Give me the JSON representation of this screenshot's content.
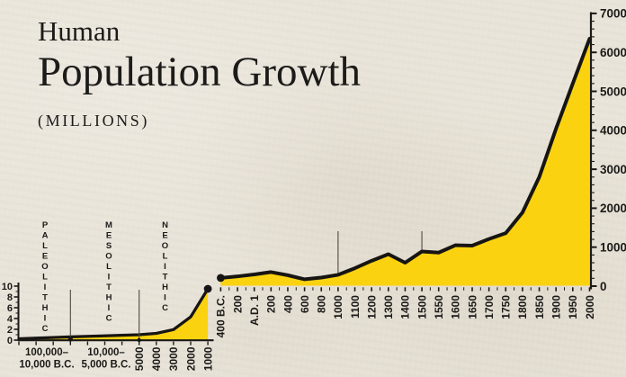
{
  "title": {
    "line1": "Human",
    "line2": "Population Growth",
    "unit_label": "(MILLIONS)"
  },
  "colors": {
    "background": "#e9e4d9",
    "area_fill": "#fbd20f",
    "curve_line": "#171513",
    "text": "#1b1a18",
    "annotation_line": "#4e483f"
  },
  "epochs": [
    {
      "label": "PALEOLITHIC"
    },
    {
      "label": "MESOLITHIC"
    },
    {
      "label": "NEOLITHIC"
    }
  ],
  "chart_data": [
    {
      "type": "area",
      "name": "prehistoric-population",
      "ylim": [
        0,
        10
      ],
      "yticks": [
        0,
        2,
        4,
        6,
        8,
        10
      ],
      "grid": false,
      "categories": [
        "100,000 B.C.",
        "10,000 B.C.",
        "5000 B.C.",
        "4000 B.C.",
        "3000 B.C.",
        "2000 B.C.",
        "1000 B.C."
      ],
      "values": [
        0.25,
        0.6,
        1.0,
        1.25,
        1.95,
        4.3,
        9.5
      ],
      "range_labels": [
        {
          "line1": "100,000–",
          "line2": "10,000 B.C."
        },
        {
          "line1": "10,000–",
          "line2": "5,000 B.C."
        }
      ],
      "rotated_tick_labels": [
        "5000",
        "4000",
        "3000",
        "2000",
        "1000"
      ],
      "end_dot": true
    },
    {
      "type": "area",
      "name": "historic-population",
      "ylim": [
        0,
        7000
      ],
      "yticks": [
        0,
        1000,
        2000,
        3000,
        4000,
        5000,
        6000,
        7000
      ],
      "y_minor_tick_step": 200,
      "grid": false,
      "categories": [
        "400 B.C.",
        "200",
        "A.D. 1",
        "200",
        "400",
        "600",
        "800",
        "1000",
        "1100",
        "1200",
        "1300",
        "1400",
        "1500",
        "1550",
        "1600",
        "1650",
        "1700",
        "1750",
        "1800",
        "1850",
        "1900",
        "1950",
        "2000"
      ],
      "values": [
        210,
        250,
        300,
        360,
        280,
        175,
        220,
        290,
        460,
        650,
        820,
        600,
        890,
        860,
        1050,
        1040,
        1210,
        1360,
        1890,
        2800,
        4040,
        5200,
        6350
      ],
      "start_dot": true,
      "annotation_lines_at": [
        "1000",
        "1500"
      ]
    }
  ]
}
